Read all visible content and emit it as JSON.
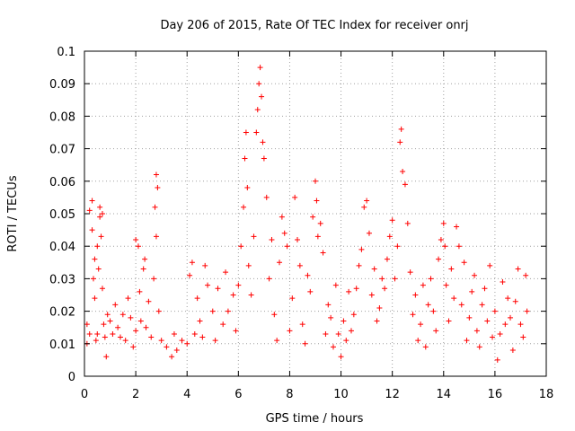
{
  "chart_data": {
    "type": "scatter",
    "title": "Day 206 of 2015, Rate Of TEC Index for receiver onrj",
    "xlabel": "GPS time / hours",
    "ylabel": "ROTI / TECUs",
    "xlim": [
      0,
      18
    ],
    "ylim": [
      0,
      0.1
    ],
    "x_ticks": [
      "0",
      "2",
      "4",
      "6",
      "8",
      "10",
      "12",
      "14",
      "16",
      "18"
    ],
    "y_ticks": [
      "0",
      "0.01",
      "0.02",
      "0.03",
      "0.04",
      "0.05",
      "0.06",
      "0.07",
      "0.08",
      "0.09",
      "0.1"
    ],
    "grid": true,
    "legend": "none",
    "marker": "+",
    "color": "#ff0000",
    "series": [
      {
        "values": [
          [
            0.1,
            0.01
          ],
          [
            0.1,
            0.016
          ],
          [
            0.2,
            0.013
          ],
          [
            0.2,
            0.051
          ],
          [
            0.3,
            0.054
          ],
          [
            0.3,
            0.045
          ],
          [
            0.35,
            0.03
          ],
          [
            0.4,
            0.036
          ],
          [
            0.4,
            0.024
          ],
          [
            0.45,
            0.011
          ],
          [
            0.5,
            0.013
          ],
          [
            0.5,
            0.04
          ],
          [
            0.55,
            0.033
          ],
          [
            0.6,
            0.052
          ],
          [
            0.6,
            0.049
          ],
          [
            0.65,
            0.043
          ],
          [
            0.7,
            0.05
          ],
          [
            0.7,
            0.027
          ],
          [
            0.75,
            0.016
          ],
          [
            0.8,
            0.012
          ],
          [
            0.85,
            0.006
          ],
          [
            0.9,
            0.019
          ],
          [
            1.0,
            0.017
          ],
          [
            1.1,
            0.013
          ],
          [
            1.2,
            0.022
          ],
          [
            1.3,
            0.015
          ],
          [
            1.4,
            0.012
          ],
          [
            1.5,
            0.019
          ],
          [
            1.6,
            0.011
          ],
          [
            1.7,
            0.024
          ],
          [
            1.8,
            0.018
          ],
          [
            1.9,
            0.009
          ],
          [
            2.0,
            0.014
          ],
          [
            2.0,
            0.042
          ],
          [
            2.1,
            0.04
          ],
          [
            2.15,
            0.026
          ],
          [
            2.2,
            0.017
          ],
          [
            2.3,
            0.033
          ],
          [
            2.35,
            0.036
          ],
          [
            2.4,
            0.015
          ],
          [
            2.5,
            0.023
          ],
          [
            2.6,
            0.012
          ],
          [
            2.7,
            0.03
          ],
          [
            2.75,
            0.052
          ],
          [
            2.8,
            0.062
          ],
          [
            2.8,
            0.043
          ],
          [
            2.85,
            0.058
          ],
          [
            2.9,
            0.02
          ],
          [
            3.0,
            0.011
          ],
          [
            3.2,
            0.009
          ],
          [
            3.4,
            0.006
          ],
          [
            3.5,
            0.013
          ],
          [
            3.6,
            0.008
          ],
          [
            3.8,
            0.011
          ],
          [
            4.0,
            0.01
          ],
          [
            4.1,
            0.031
          ],
          [
            4.2,
            0.035
          ],
          [
            4.3,
            0.013
          ],
          [
            4.4,
            0.024
          ],
          [
            4.5,
            0.017
          ],
          [
            4.6,
            0.012
          ],
          [
            4.7,
            0.034
          ],
          [
            4.8,
            0.028
          ],
          [
            5.0,
            0.02
          ],
          [
            5.1,
            0.011
          ],
          [
            5.2,
            0.027
          ],
          [
            5.4,
            0.016
          ],
          [
            5.5,
            0.032
          ],
          [
            5.6,
            0.02
          ],
          [
            5.8,
            0.025
          ],
          [
            5.9,
            0.014
          ],
          [
            6.0,
            0.028
          ],
          [
            6.1,
            0.04
          ],
          [
            6.2,
            0.052
          ],
          [
            6.25,
            0.067
          ],
          [
            6.3,
            0.075
          ],
          [
            6.35,
            0.058
          ],
          [
            6.4,
            0.034
          ],
          [
            6.5,
            0.025
          ],
          [
            6.6,
            0.043
          ],
          [
            6.7,
            0.075
          ],
          [
            6.75,
            0.082
          ],
          [
            6.8,
            0.09
          ],
          [
            6.85,
            0.095
          ],
          [
            6.9,
            0.086
          ],
          [
            6.95,
            0.072
          ],
          [
            7.0,
            0.067
          ],
          [
            7.1,
            0.055
          ],
          [
            7.2,
            0.03
          ],
          [
            7.3,
            0.042
          ],
          [
            7.4,
            0.019
          ],
          [
            7.5,
            0.011
          ],
          [
            7.6,
            0.035
          ],
          [
            7.7,
            0.049
          ],
          [
            7.8,
            0.044
          ],
          [
            7.9,
            0.04
          ],
          [
            8.0,
            0.014
          ],
          [
            8.1,
            0.024
          ],
          [
            8.2,
            0.055
          ],
          [
            8.3,
            0.042
          ],
          [
            8.4,
            0.034
          ],
          [
            8.5,
            0.016
          ],
          [
            8.6,
            0.01
          ],
          [
            8.7,
            0.031
          ],
          [
            8.8,
            0.026
          ],
          [
            8.9,
            0.049
          ],
          [
            9.0,
            0.06
          ],
          [
            9.05,
            0.054
          ],
          [
            9.1,
            0.043
          ],
          [
            9.2,
            0.047
          ],
          [
            9.3,
            0.038
          ],
          [
            9.4,
            0.013
          ],
          [
            9.5,
            0.022
          ],
          [
            9.6,
            0.018
          ],
          [
            9.7,
            0.009
          ],
          [
            9.8,
            0.028
          ],
          [
            9.9,
            0.013
          ],
          [
            10.0,
            0.006
          ],
          [
            10.1,
            0.017
          ],
          [
            10.2,
            0.011
          ],
          [
            10.3,
            0.026
          ],
          [
            10.4,
            0.014
          ],
          [
            10.5,
            0.019
          ],
          [
            10.6,
            0.027
          ],
          [
            10.7,
            0.034
          ],
          [
            10.8,
            0.039
          ],
          [
            10.9,
            0.052
          ],
          [
            11.0,
            0.054
          ],
          [
            11.1,
            0.044
          ],
          [
            11.2,
            0.025
          ],
          [
            11.3,
            0.033
          ],
          [
            11.4,
            0.017
          ],
          [
            11.5,
            0.021
          ],
          [
            11.6,
            0.03
          ],
          [
            11.7,
            0.027
          ],
          [
            11.8,
            0.036
          ],
          [
            11.9,
            0.043
          ],
          [
            12.0,
            0.048
          ],
          [
            12.1,
            0.03
          ],
          [
            12.2,
            0.04
          ],
          [
            12.3,
            0.072
          ],
          [
            12.35,
            0.076
          ],
          [
            12.4,
            0.063
          ],
          [
            12.5,
            0.059
          ],
          [
            12.6,
            0.047
          ],
          [
            12.7,
            0.032
          ],
          [
            12.8,
            0.019
          ],
          [
            12.9,
            0.025
          ],
          [
            13.0,
            0.011
          ],
          [
            13.1,
            0.016
          ],
          [
            13.2,
            0.028
          ],
          [
            13.3,
            0.009
          ],
          [
            13.4,
            0.022
          ],
          [
            13.5,
            0.03
          ],
          [
            13.6,
            0.02
          ],
          [
            13.7,
            0.014
          ],
          [
            13.8,
            0.036
          ],
          [
            13.9,
            0.042
          ],
          [
            14.0,
            0.047
          ],
          [
            14.05,
            0.04
          ],
          [
            14.1,
            0.028
          ],
          [
            14.2,
            0.017
          ],
          [
            14.3,
            0.033
          ],
          [
            14.4,
            0.024
          ],
          [
            14.5,
            0.046
          ],
          [
            14.6,
            0.04
          ],
          [
            14.7,
            0.022
          ],
          [
            14.8,
            0.035
          ],
          [
            14.9,
            0.011
          ],
          [
            15.0,
            0.018
          ],
          [
            15.1,
            0.026
          ],
          [
            15.2,
            0.031
          ],
          [
            15.3,
            0.014
          ],
          [
            15.4,
            0.009
          ],
          [
            15.5,
            0.022
          ],
          [
            15.6,
            0.027
          ],
          [
            15.7,
            0.017
          ],
          [
            15.8,
            0.034
          ],
          [
            15.9,
            0.012
          ],
          [
            16.0,
            0.02
          ],
          [
            16.1,
            0.005
          ],
          [
            16.2,
            0.013
          ],
          [
            16.3,
            0.029
          ],
          [
            16.4,
            0.016
          ],
          [
            16.5,
            0.024
          ],
          [
            16.6,
            0.018
          ],
          [
            16.7,
            0.008
          ],
          [
            16.8,
            0.023
          ],
          [
            16.9,
            0.033
          ],
          [
            17.0,
            0.016
          ],
          [
            17.1,
            0.012
          ],
          [
            17.2,
            0.031
          ],
          [
            17.25,
            0.02
          ]
        ]
      }
    ]
  }
}
